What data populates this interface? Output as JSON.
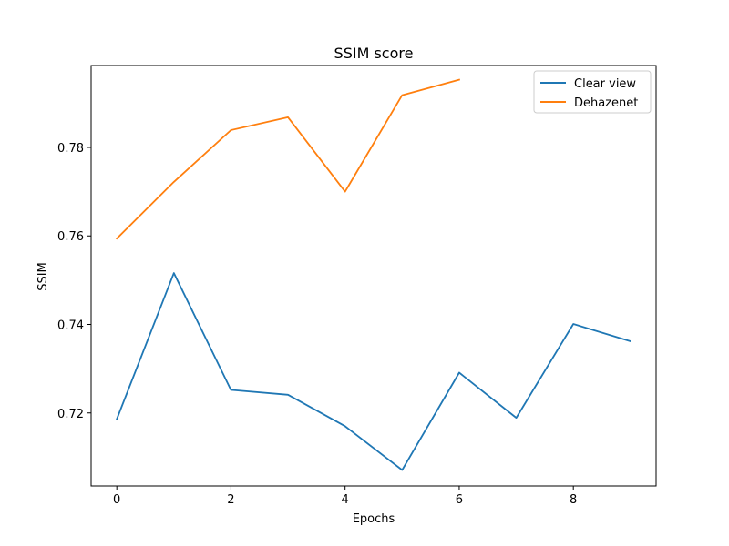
{
  "chart_data": {
    "type": "line",
    "title": "SSIM score",
    "xlabel": "Epochs",
    "ylabel": "SSIM",
    "xlim": [
      -0.45,
      9.45
    ],
    "ylim": [
      0.7035,
      0.7985
    ],
    "xticks": [
      0,
      2,
      4,
      6,
      8
    ],
    "yticks": [
      0.72,
      0.74,
      0.76,
      0.78
    ],
    "xtick_labels": [
      "0",
      "2",
      "4",
      "6",
      "8"
    ],
    "ytick_labels": [
      "0.72",
      "0.74",
      "0.76",
      "0.78"
    ],
    "grid": false,
    "legend_position": "top-right",
    "series": [
      {
        "name": "Clear view",
        "color": "#1f77b4",
        "x": [
          0,
          1,
          2,
          3,
          4,
          5,
          6,
          7,
          8,
          9
        ],
        "y": [
          0.7186,
          0.7516,
          0.7252,
          0.7241,
          0.717,
          0.7071,
          0.7291,
          0.7189,
          0.7401,
          0.7362
        ]
      },
      {
        "name": "Dehazenet",
        "color": "#ff7f0e",
        "x": [
          0,
          1,
          2,
          3,
          4,
          5,
          6
        ],
        "y": [
          0.7594,
          0.7722,
          0.7839,
          0.7868,
          0.77,
          0.7918,
          0.7953
        ]
      }
    ]
  }
}
